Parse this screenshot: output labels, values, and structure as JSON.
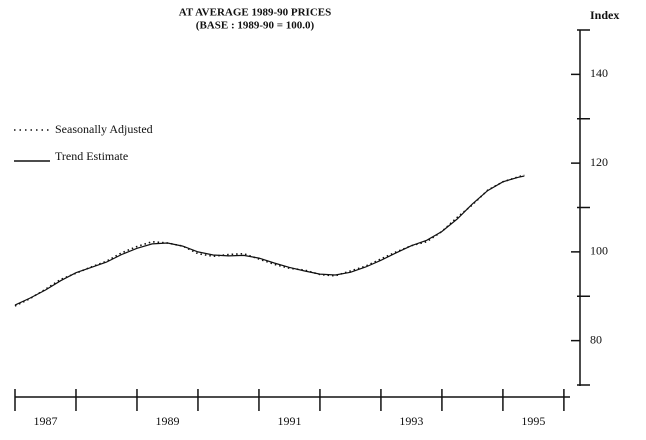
{
  "chart_data": {
    "type": "line",
    "title_lines": [
      "AT AVERAGE 1989-90 PRICES",
      "(BASE : 1989-90 = 100.0)"
    ],
    "y_axis_label": "Index",
    "xlim": [
      1986.5,
      1995.6
    ],
    "xticks": [
      1987,
      1989,
      1991,
      1993,
      1995
    ],
    "x_minor_ticks": [
      1986.5,
      1987.5,
      1988.5,
      1989.5,
      1990.5,
      1991.5,
      1992.5,
      1993.5,
      1994.5,
      1995.5
    ],
    "ylim": [
      70,
      150
    ],
    "yticks": [
      80,
      100,
      120,
      140
    ],
    "y_minor_ticks": [
      70,
      90,
      110,
      130,
      150
    ],
    "legend": "upper left",
    "x": [
      1986.5,
      1986.75,
      1987.0,
      1987.25,
      1987.5,
      1987.75,
      1988.0,
      1988.25,
      1988.5,
      1988.75,
      1989.0,
      1989.25,
      1989.5,
      1989.75,
      1990.0,
      1990.25,
      1990.5,
      1990.75,
      1991.0,
      1991.25,
      1991.5,
      1991.75,
      1992.0,
      1992.25,
      1992.5,
      1992.75,
      1993.0,
      1993.25,
      1993.5,
      1993.75,
      1994.0,
      1994.25,
      1994.5,
      1994.75,
      1994.85
    ],
    "series": [
      {
        "name": "Seasonally Adjusted",
        "style": "dotted",
        "color": "#111111",
        "values": [
          87.8,
          89.5,
          91.6,
          93.8,
          95.2,
          96.6,
          97.9,
          99.8,
          101.2,
          102.3,
          102.0,
          101.3,
          99.6,
          99.0,
          99.4,
          99.6,
          98.4,
          97.2,
          96.3,
          95.9,
          94.9,
          94.6,
          95.7,
          96.8,
          98.4,
          100.0,
          101.4,
          102.3,
          104.6,
          107.8,
          110.6,
          113.9,
          115.8,
          116.9,
          117.3
        ]
      },
      {
        "name": "Trend Estimate",
        "style": "solid",
        "color": "#111111",
        "values": [
          88.0,
          89.6,
          91.4,
          93.5,
          95.3,
          96.5,
          97.7,
          99.4,
          100.8,
          101.8,
          102.0,
          101.3,
          100.0,
          99.3,
          99.1,
          99.2,
          98.6,
          97.5,
          96.5,
          95.7,
          95.0,
          94.8,
          95.4,
          96.6,
          98.1,
          99.8,
          101.4,
          102.6,
          104.6,
          107.4,
          110.8,
          113.8,
          115.8,
          116.8,
          117.1
        ]
      }
    ]
  }
}
